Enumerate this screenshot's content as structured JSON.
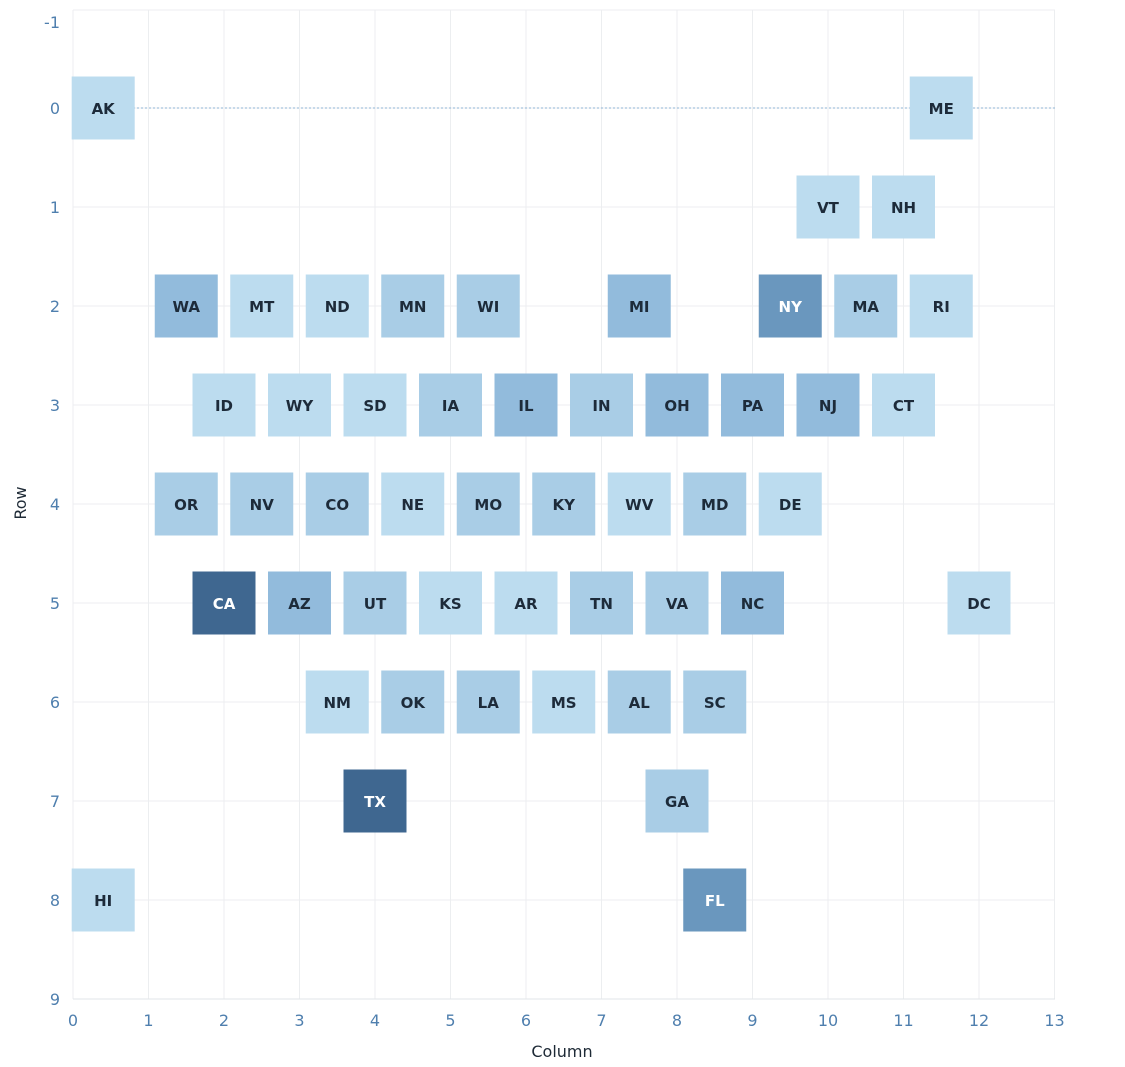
{
  "chart_data": {
    "type": "heatmap",
    "xlabel": "Column",
    "ylabel": "Row",
    "xlim": [
      0,
      13
    ],
    "ylim": [
      -1,
      9
    ],
    "x_ticks": [
      "0",
      "1",
      "2",
      "3",
      "4",
      "5",
      "6",
      "7",
      "8",
      "9",
      "10",
      "11",
      "12",
      "13"
    ],
    "y_ticks": [
      "-1",
      "0",
      "1",
      "2",
      "3",
      "4",
      "5",
      "6",
      "7",
      "8",
      "9"
    ],
    "y_reversed": true,
    "grid": true,
    "reference_line_y": 0,
    "colors": {
      "1": "#bcdcef",
      "2": "#a9cde6",
      "3": "#92bbdc",
      "4": "#6a97be",
      "5": "#3f6790",
      "dark_text": "#1d2b3a",
      "light_text": "#ffffff"
    },
    "tiles": [
      {
        "state": "AK",
        "col": 0.4,
        "row": 0,
        "level": 1
      },
      {
        "state": "ME",
        "col": 11.5,
        "row": 0,
        "level": 1
      },
      {
        "state": "VT",
        "col": 10,
        "row": 1,
        "level": 1
      },
      {
        "state": "NH",
        "col": 11,
        "row": 1,
        "level": 1
      },
      {
        "state": "WA",
        "col": 1.5,
        "row": 2,
        "level": 3
      },
      {
        "state": "MT",
        "col": 2.5,
        "row": 2,
        "level": 1
      },
      {
        "state": "ND",
        "col": 3.5,
        "row": 2,
        "level": 1
      },
      {
        "state": "MN",
        "col": 4.5,
        "row": 2,
        "level": 2
      },
      {
        "state": "WI",
        "col": 5.5,
        "row": 2,
        "level": 2
      },
      {
        "state": "MI",
        "col": 7.5,
        "row": 2,
        "level": 3
      },
      {
        "state": "NY",
        "col": 9.5,
        "row": 2,
        "level": 4
      },
      {
        "state": "MA",
        "col": 10.5,
        "row": 2,
        "level": 2
      },
      {
        "state": "RI",
        "col": 11.5,
        "row": 2,
        "level": 1
      },
      {
        "state": "ID",
        "col": 2,
        "row": 3,
        "level": 1
      },
      {
        "state": "WY",
        "col": 3,
        "row": 3,
        "level": 1
      },
      {
        "state": "SD",
        "col": 4,
        "row": 3,
        "level": 1
      },
      {
        "state": "IA",
        "col": 5,
        "row": 3,
        "level": 2
      },
      {
        "state": "IL",
        "col": 6,
        "row": 3,
        "level": 3
      },
      {
        "state": "IN",
        "col": 7,
        "row": 3,
        "level": 2
      },
      {
        "state": "OH",
        "col": 8,
        "row": 3,
        "level": 3
      },
      {
        "state": "PA",
        "col": 9,
        "row": 3,
        "level": 3
      },
      {
        "state": "NJ",
        "col": 10,
        "row": 3,
        "level": 3
      },
      {
        "state": "CT",
        "col": 11,
        "row": 3,
        "level": 1
      },
      {
        "state": "OR",
        "col": 1.5,
        "row": 4,
        "level": 2
      },
      {
        "state": "NV",
        "col": 2.5,
        "row": 4,
        "level": 2
      },
      {
        "state": "CO",
        "col": 3.5,
        "row": 4,
        "level": 2
      },
      {
        "state": "NE",
        "col": 4.5,
        "row": 4,
        "level": 1
      },
      {
        "state": "MO",
        "col": 5.5,
        "row": 4,
        "level": 2
      },
      {
        "state": "KY",
        "col": 6.5,
        "row": 4,
        "level": 2
      },
      {
        "state": "WV",
        "col": 7.5,
        "row": 4,
        "level": 1
      },
      {
        "state": "MD",
        "col": 8.5,
        "row": 4,
        "level": 2
      },
      {
        "state": "DE",
        "col": 9.5,
        "row": 4,
        "level": 1
      },
      {
        "state": "CA",
        "col": 2,
        "row": 5,
        "level": 5
      },
      {
        "state": "AZ",
        "col": 3,
        "row": 5,
        "level": 3
      },
      {
        "state": "UT",
        "col": 4,
        "row": 5,
        "level": 2
      },
      {
        "state": "KS",
        "col": 5,
        "row": 5,
        "level": 1
      },
      {
        "state": "AR",
        "col": 6,
        "row": 5,
        "level": 1
      },
      {
        "state": "TN",
        "col": 7,
        "row": 5,
        "level": 2
      },
      {
        "state": "VA",
        "col": 8,
        "row": 5,
        "level": 2
      },
      {
        "state": "NC",
        "col": 9,
        "row": 5,
        "level": 3
      },
      {
        "state": "DC",
        "col": 12,
        "row": 5,
        "level": 1
      },
      {
        "state": "NM",
        "col": 3.5,
        "row": 6,
        "level": 1
      },
      {
        "state": "OK",
        "col": 4.5,
        "row": 6,
        "level": 2
      },
      {
        "state": "LA",
        "col": 5.5,
        "row": 6,
        "level": 2
      },
      {
        "state": "MS",
        "col": 6.5,
        "row": 6,
        "level": 1
      },
      {
        "state": "AL",
        "col": 7.5,
        "row": 6,
        "level": 2
      },
      {
        "state": "SC",
        "col": 8.5,
        "row": 6,
        "level": 2
      },
      {
        "state": "TX",
        "col": 4,
        "row": 7,
        "level": 5
      },
      {
        "state": "GA",
        "col": 8,
        "row": 7,
        "level": 2
      },
      {
        "state": "HI",
        "col": 0.4,
        "row": 8,
        "level": 1
      },
      {
        "state": "FL",
        "col": 8.5,
        "row": 8,
        "level": 4
      }
    ]
  }
}
